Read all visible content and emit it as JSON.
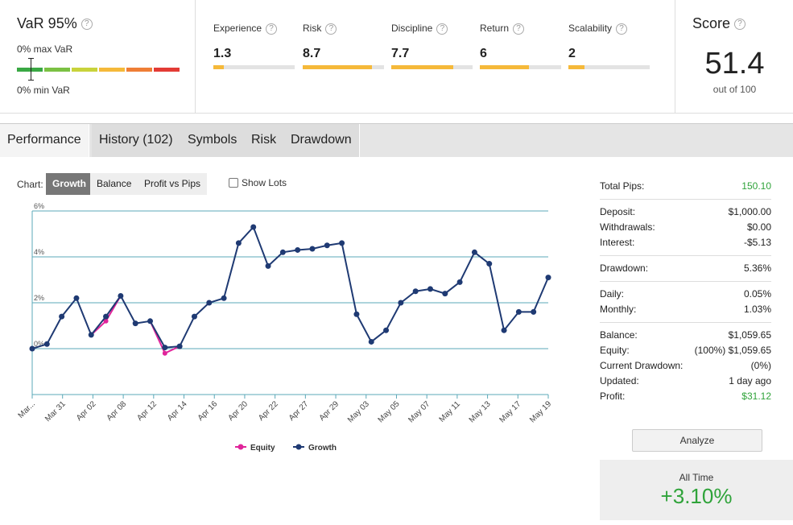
{
  "var": {
    "title": "VaR 95%",
    "max_label": "0% max VaR",
    "min_label": "0% min VaR",
    "scale_colors": [
      "#3aa844",
      "#7bc143",
      "#c8d33b",
      "#f5b93a",
      "#ef7e36",
      "#e33b35"
    ]
  },
  "help_glyph": "?",
  "metrics": [
    {
      "label": "Experience",
      "value": "1.3",
      "fill": 0.13
    },
    {
      "label": "Risk",
      "value": "8.7",
      "fill": 0.85
    },
    {
      "label": "Discipline",
      "value": "7.7",
      "fill": 0.76
    },
    {
      "label": "Return",
      "value": "6",
      "fill": 0.6
    },
    {
      "label": "Scalability",
      "value": "2",
      "fill": 0.2
    }
  ],
  "score": {
    "title": "Score",
    "value": "51.4",
    "subtitle": "out of 100"
  },
  "tabs": [
    "Performance",
    "History (102)",
    "Symbols",
    "Risk",
    "Drawdown"
  ],
  "chart_controls": {
    "label": "Chart:",
    "options": [
      "Growth",
      "Balance",
      "Profit vs Pips"
    ],
    "selected": "Growth",
    "show_lots": "Show Lots"
  },
  "chart_data": {
    "type": "line",
    "yticks": [
      "0%",
      "2%",
      "4%",
      "6%"
    ],
    "ylim": [
      -2,
      6
    ],
    "xticks": [
      "Mar...",
      "Mar 31",
      "Apr 02",
      "Apr 08",
      "Apr 12",
      "Apr 14",
      "Apr 16",
      "Apr 20",
      "Apr 22",
      "Apr 27",
      "Apr 29",
      "May 03",
      "May 05",
      "May 07",
      "May 11",
      "May 13",
      "May 17",
      "May 19"
    ],
    "series": [
      {
        "name": "Growth",
        "color": "#1f3a73",
        "values": [
          0.0,
          0.2,
          1.4,
          2.2,
          0.6,
          1.4,
          2.3,
          1.1,
          1.2,
          0.05,
          0.1,
          1.4,
          2.0,
          2.2,
          4.6,
          5.3,
          3.6,
          4.2,
          4.3,
          4.35,
          4.5,
          4.6,
          1.5,
          0.3,
          0.8,
          2.0,
          2.5,
          2.6,
          2.4,
          2.9,
          4.2,
          3.7,
          0.8,
          1.6,
          1.6,
          3.1
        ]
      },
      {
        "name": "Equity",
        "color": "#e0249a",
        "segments": [
          {
            "start": 4,
            "values": [
              0.6,
              1.2,
              2.3
            ]
          },
          {
            "start": 8,
            "values": [
              1.2,
              -0.2,
              0.1
            ]
          }
        ]
      }
    ],
    "legend": [
      "Equity",
      "Growth"
    ]
  },
  "stats": {
    "total_pips": {
      "label": "Total Pips:",
      "value": "150.10"
    },
    "group1": [
      {
        "label": "Deposit:",
        "value": "$1,000.00"
      },
      {
        "label": "Withdrawals:",
        "value": "$0.00"
      },
      {
        "label": "Interest:",
        "value": "-$5.13"
      }
    ],
    "drawdown": {
      "label": "Drawdown:",
      "value": "5.36%"
    },
    "group2": [
      {
        "label": "Daily:",
        "value": "0.05%"
      },
      {
        "label": "Monthly:",
        "value": "1.03%"
      }
    ],
    "group3": [
      {
        "label": "Balance:",
        "value": "$1,059.65"
      },
      {
        "label": "Equity:",
        "value": "(100%) $1,059.65"
      },
      {
        "label": "Current Drawdown:",
        "value": "(0%)"
      },
      {
        "label": "Updated:",
        "value": "1 day ago"
      },
      {
        "label": "Profit:",
        "value": "$31.12"
      }
    ]
  },
  "analyze_label": "Analyze",
  "all_time": {
    "label": "All Time",
    "value": "+3.10%"
  },
  "colors": {
    "accent_green": "#2fa33a",
    "line_blue": "#1f3a73",
    "equity_pink": "#e0249a",
    "grid_teal": "#5ba8b8"
  }
}
